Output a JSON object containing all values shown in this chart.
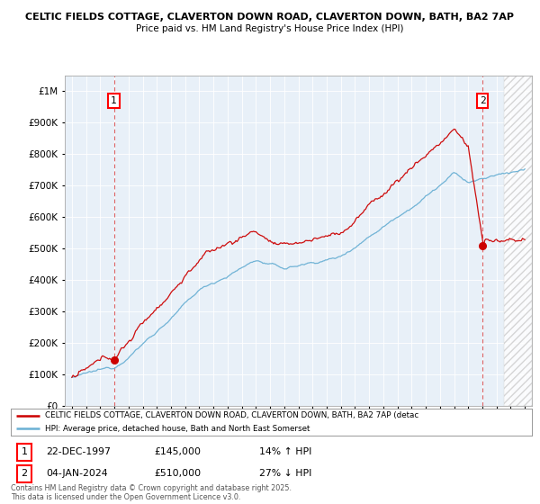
{
  "title_line1": "CELTIC FIELDS COTTAGE, CLAVERTON DOWN ROAD, CLAVERTON DOWN, BATH, BA2 7AP",
  "title_line2": "Price paid vs. HM Land Registry's House Price Index (HPI)",
  "sale1_date": "22-DEC-1997",
  "sale1_price": 145000,
  "sale1_label": "14% ↑ HPI",
  "sale2_date": "04-JAN-2024",
  "sale2_price": 510000,
  "sale2_label": "27% ↓ HPI",
  "legend_label1": "CELTIC FIELDS COTTAGE, CLAVERTON DOWN ROAD, CLAVERTON DOWN, BATH, BA2 7AP (detac",
  "legend_label2": "HPI: Average price, detached house, Bath and North East Somerset",
  "footnote": "Contains HM Land Registry data © Crown copyright and database right 2025.\nThis data is licensed under the Open Government Licence v3.0.",
  "hpi_color": "#6ab0d4",
  "price_color": "#cc0000",
  "dot_color": "#cc0000",
  "background_color": "#ffffff",
  "chart_bg": "#e8f0f8",
  "grid_color": "#ffffff",
  "ylim_min": 0,
  "ylim_max": 1050000,
  "xlim_min": 1994.5,
  "xlim_max": 2027.5,
  "sale1_x": 1997.97,
  "sale2_x": 2024.01
}
